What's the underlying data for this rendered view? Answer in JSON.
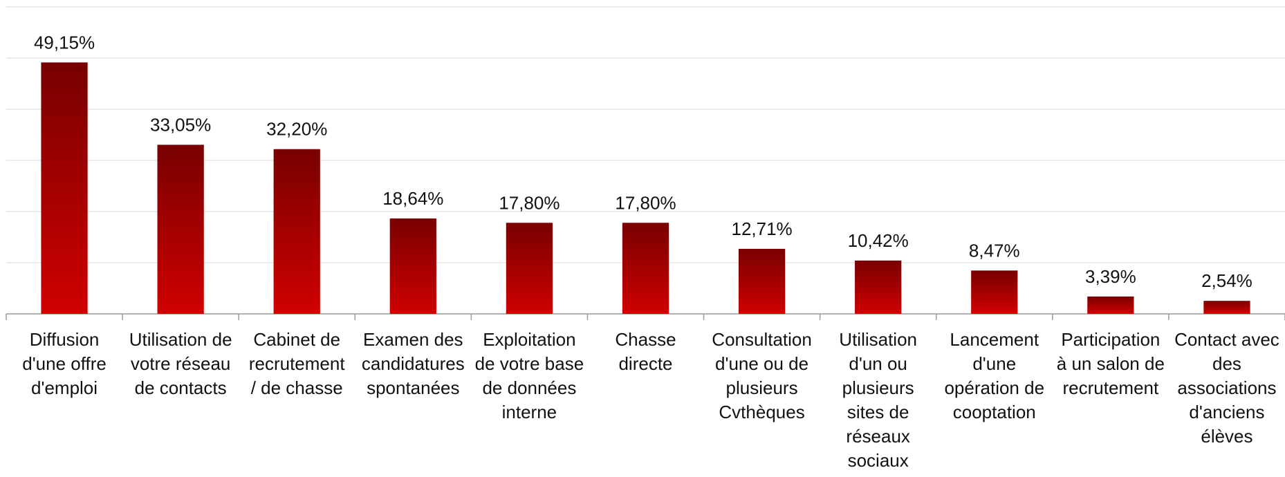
{
  "chart_data": {
    "type": "bar",
    "categories": [
      "Diffusion\nd'une offre\nd'emploi",
      "Utilisation de\nvotre réseau\nde contacts",
      "Cabinet de\nrecrutement\n/ de chasse",
      "Examen des\ncandidatures\nspontanées",
      "Exploitation\nde votre base\nde données\ninterne",
      "Chasse\ndirecte",
      "Consultation\nd'une ou de\nplusieurs\nCvthèques",
      "Utilisation\nd'un ou\nplusieurs\nsites de\nréseaux\nsociaux",
      "Lancement\nd'une\nopération de\ncooptation",
      "Participation\nà un salon de\nrecrutement",
      "Contact avec\ndes\nassociations\nd'anciens\nélèves"
    ],
    "values": [
      49.15,
      33.05,
      32.2,
      18.64,
      17.8,
      17.8,
      12.71,
      10.42,
      8.47,
      3.39,
      2.54
    ],
    "value_labels": [
      "49,15%",
      "33,05%",
      "32,20%",
      "18,64%",
      "17,80%",
      "17,80%",
      "12,71%",
      "10,42%",
      "8,47%",
      "3,39%",
      "2,54%"
    ],
    "gradient": [
      "#780000",
      "#d00000"
    ],
    "ylim": [
      0,
      60
    ],
    "yticks": [
      0,
      10,
      20,
      30,
      40,
      50,
      60
    ],
    "grid": true
  }
}
